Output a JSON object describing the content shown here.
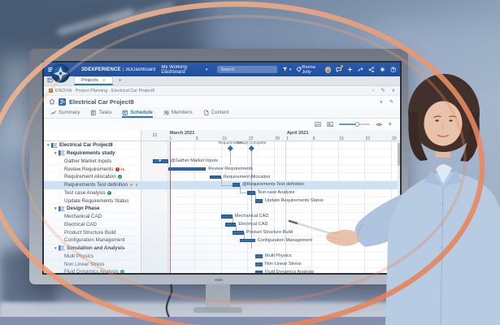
{
  "window": {
    "brand": "3DEXPERIENCE",
    "brand_sep": "|",
    "app_name": "3DDashboard",
    "dashboard_name": "My Working Dashboard",
    "search_placeholder": "Search",
    "user_name": "Reena Jolly",
    "topbar_icons": [
      "filter-icon",
      "tag-icon",
      "chat-icon",
      "add-icon",
      "forward-icon",
      "share-icon",
      "apps-icon",
      "help-icon"
    ]
  },
  "tabstrip": {
    "active_tab": "Projects",
    "add_button": "+"
  },
  "breadcrumb": {
    "items": [
      "ENOVIA",
      "Project Planning",
      "Electrical Car Project8"
    ],
    "separator": "·"
  },
  "page": {
    "title": "Electrical Car Project8"
  },
  "app_tabs": [
    {
      "label": "Summary",
      "icon": "chart",
      "active": false
    },
    {
      "label": "Tasks",
      "icon": "tasks",
      "active": false
    },
    {
      "label": "Schedule",
      "icon": "calendar",
      "active": true
    },
    {
      "label": "Members",
      "icon": "members",
      "active": false
    },
    {
      "label": "Content",
      "icon": "document",
      "active": false
    }
  ],
  "colors": {
    "topbar": "#2456a4",
    "accent": "#2a7ab8",
    "bar": "#2e6ba8",
    "selected_row": "#cfe2f5",
    "today_line": "#9c4a4a",
    "ring": "#f09468"
  },
  "chart_data": {
    "type": "gantt",
    "timeline": {
      "pre_column_label": "22",
      "pre_days": 7,
      "months": [
        {
          "label": "March 2021",
          "ticks": [
            [
              "1",
              7
            ],
            [
              "8",
              14
            ],
            [
              "15",
              21
            ],
            [
              "22",
              28
            ],
            [
              "29",
              35
            ]
          ]
        },
        {
          "label": "April 2021",
          "ticks": [
            [
              "1",
              38
            ],
            [
              "8",
              45
            ],
            [
              "15",
              52
            ],
            [
              "22",
              59
            ],
            [
              "29",
              66
            ]
          ]
        }
      ],
      "today_day": 7.4
    },
    "rows": [
      {
        "label": "Electrical Car Project8",
        "level": 0,
        "group": true
      },
      {
        "label": "Requirements study",
        "level": 1,
        "group": true
      },
      {
        "label": "Gather Market Inputs",
        "level": 2,
        "bar": {
          "start": 3,
          "end": 7
        },
        "bar_label": "@Gather Market Inputs",
        "cursor": true
      },
      {
        "label": "Review Requirements",
        "level": 2,
        "badge": "red-plus1",
        "bar": {
          "start": 7,
          "end": 17
        },
        "bar_label": "Review Requirements"
      },
      {
        "label": "Requirement Allocation",
        "level": 2,
        "badge": "green-check",
        "bar": {
          "start": 18,
          "end": 21
        },
        "bar_label": "Requirement Allocation"
      },
      {
        "label": "Requirements Test definition",
        "level": 2,
        "selected": true,
        "linked": true,
        "bar": {
          "start": 24,
          "end": 26
        },
        "bar_label": "@Requirements Test definition"
      },
      {
        "label": "Test case Analysis",
        "level": 2,
        "badge": "green-check",
        "linked": true,
        "bar": {
          "start": 28,
          "end": 30
        },
        "bar_label": "Test case Analysis"
      },
      {
        "label": "Update Requirements Status",
        "level": 2,
        "linked": true,
        "bar": {
          "start": 30,
          "end": 32
        },
        "bar_label": "Update Requirements Status"
      },
      {
        "label": "Design Phase",
        "level": 1,
        "group": true
      },
      {
        "label": "Mechanical CAD",
        "level": 2,
        "bar": {
          "start": 21,
          "end": 24
        },
        "bar_label": "Mechanical CAD"
      },
      {
        "label": "Electrical CAD",
        "level": 2,
        "linked": true,
        "bar": {
          "start": 22,
          "end": 25
        },
        "bar_label": "Electrical CAD"
      },
      {
        "label": "Product Structure Build",
        "level": 2,
        "linked": true,
        "bar": {
          "start": 24,
          "end": 27
        },
        "bar_label": "Product Structure Build"
      },
      {
        "label": "Configuration Management",
        "level": 2,
        "linked": true,
        "bar": {
          "start": 26,
          "end": 30
        },
        "bar_label": "Configuration Management"
      },
      {
        "label": "Simulation and Analysis",
        "level": 1,
        "group": true
      },
      {
        "label": "Multi Physics",
        "level": 2,
        "bar": {
          "start": 30,
          "end": 32
        },
        "bar_label": "Multi Physics"
      },
      {
        "label": "Non Linear Stress",
        "level": 2,
        "bar": {
          "start": 30,
          "end": 32
        },
        "bar_label": "Non Linear Stress"
      },
      {
        "label": "Fluid Dynamics Analysis",
        "level": 2,
        "badge": "green-check",
        "bar": {
          "start": 30,
          "end": 32
        },
        "bar_label": "Fluid Dynamics Analysis"
      }
    ],
    "milestones": [
      {
        "label": "Requirements",
        "day": 23.5,
        "stem_rows": 3
      },
      {
        "label": "Design Complete",
        "day": 29,
        "stem_rows": 13.5
      }
    ]
  }
}
